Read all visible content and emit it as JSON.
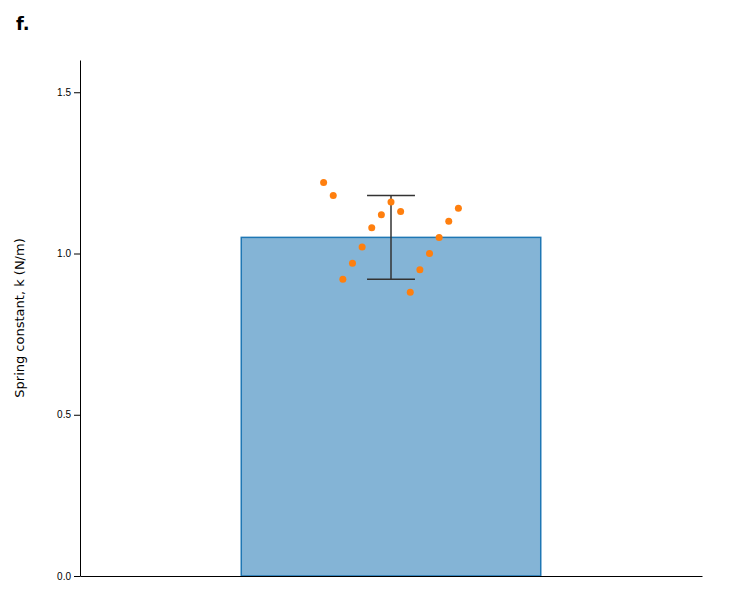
{
  "chart_data": {
    "type": "bar",
    "title": "f.",
    "ylabel": "Spring constant, k (N/m)",
    "categories": [
      null
    ],
    "values": [
      1.05
    ],
    "errors": [
      0.13
    ],
    "points": [
      1.22,
      1.16,
      1.14,
      1.12,
      1.1,
      1.08,
      1.05,
      1.02,
      1.0,
      0.97,
      0.95,
      0.92,
      0.88,
      1.18,
      1.13
    ],
    "ylim": [
      0.0,
      1.6
    ],
    "yticks": [
      {
        "value": 0,
        "label": "0.0"
      },
      0.5,
      {
        "value": 1,
        "label": "1.0"
      },
      1.5
    ],
    "grid": false,
    "tick_labels": "y"
  }
}
